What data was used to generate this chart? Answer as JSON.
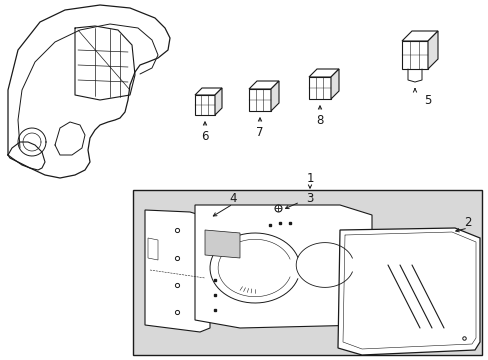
{
  "bg_color": "#ffffff",
  "box_bg": "#d8d8d8",
  "line_color": "#1a1a1a",
  "font_size": 8.5,
  "fig_w": 4.89,
  "fig_h": 3.6,
  "dpi": 100
}
